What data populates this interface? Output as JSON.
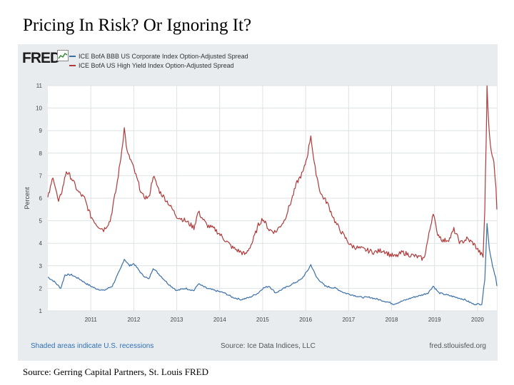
{
  "slide": {
    "title": "Pricing In Risk?  Or Ignoring It?",
    "source": "Source: Gerring Capital Partners, St. Louis FRED"
  },
  "fred": {
    "logo": "FRED",
    "footer_note": "Shaded areas indicate U.S. recessions",
    "footer_source": "Source: Ice Data Indices, LLC",
    "footer_url": "fred.stlouisfed.org"
  },
  "colors": {
    "hy": "#b03a3a",
    "bbb": "#3a6fa8",
    "panel": "#e8ecef",
    "plot_bg": "#ffffff",
    "grid": "#dde2e6"
  },
  "chart_data": {
    "type": "line",
    "ylabel": "Percent",
    "xlabel": "",
    "ylim": [
      1,
      11
    ],
    "xlim": [
      2010.0,
      2020.45
    ],
    "yticks": [
      "1",
      "2",
      "3",
      "4",
      "5",
      "6",
      "7",
      "8",
      "9",
      "10",
      "11"
    ],
    "xticks": [
      "2011",
      "2012",
      "2013",
      "2014",
      "2015",
      "2016",
      "2017",
      "2018",
      "2019",
      "2020"
    ],
    "grid": true,
    "legend_position": "top-left",
    "series": [
      {
        "name": "ICE BofA BBB US Corporate Index Option-Adjusted Spread",
        "color_key": "bbb",
        "points": [
          [
            2010.0,
            2.5
          ],
          [
            2010.15,
            2.3
          ],
          [
            2010.3,
            2.0
          ],
          [
            2010.4,
            2.6
          ],
          [
            2010.55,
            2.6
          ],
          [
            2010.75,
            2.4
          ],
          [
            2010.9,
            2.2
          ],
          [
            2011.1,
            2.0
          ],
          [
            2011.3,
            1.9
          ],
          [
            2011.5,
            2.1
          ],
          [
            2011.7,
            2.9
          ],
          [
            2011.78,
            3.3
          ],
          [
            2011.9,
            3.0
          ],
          [
            2012.0,
            3.1
          ],
          [
            2012.2,
            2.6
          ],
          [
            2012.35,
            2.4
          ],
          [
            2012.45,
            2.9
          ],
          [
            2012.6,
            2.6
          ],
          [
            2012.8,
            2.2
          ],
          [
            2013.0,
            1.9
          ],
          [
            2013.2,
            2.0
          ],
          [
            2013.4,
            1.9
          ],
          [
            2013.5,
            2.2
          ],
          [
            2013.7,
            2.0
          ],
          [
            2013.9,
            1.9
          ],
          [
            2014.1,
            1.8
          ],
          [
            2014.3,
            1.6
          ],
          [
            2014.5,
            1.5
          ],
          [
            2014.7,
            1.6
          ],
          [
            2014.9,
            1.8
          ],
          [
            2015.0,
            2.0
          ],
          [
            2015.15,
            2.1
          ],
          [
            2015.3,
            1.8
          ],
          [
            2015.5,
            2.0
          ],
          [
            2015.7,
            2.2
          ],
          [
            2015.9,
            2.4
          ],
          [
            2016.05,
            2.8
          ],
          [
            2016.12,
            3.05
          ],
          [
            2016.25,
            2.5
          ],
          [
            2016.45,
            2.1
          ],
          [
            2016.7,
            2.0
          ],
          [
            2016.9,
            1.8
          ],
          [
            2017.1,
            1.7
          ],
          [
            2017.3,
            1.6
          ],
          [
            2017.5,
            1.6
          ],
          [
            2017.7,
            1.5
          ],
          [
            2017.9,
            1.4
          ],
          [
            2018.05,
            1.3
          ],
          [
            2018.2,
            1.4
          ],
          [
            2018.35,
            1.5
          ],
          [
            2018.5,
            1.6
          ],
          [
            2018.7,
            1.7
          ],
          [
            2018.85,
            1.8
          ],
          [
            2018.97,
            2.1
          ],
          [
            2019.1,
            1.8
          ],
          [
            2019.3,
            1.7
          ],
          [
            2019.5,
            1.6
          ],
          [
            2019.7,
            1.5
          ],
          [
            2019.9,
            1.3
          ],
          [
            2020.1,
            1.3
          ],
          [
            2020.17,
            2.4
          ],
          [
            2020.22,
            4.9
          ],
          [
            2020.27,
            3.8
          ],
          [
            2020.35,
            3.0
          ],
          [
            2020.42,
            2.5
          ],
          [
            2020.45,
            2.1
          ]
        ]
      },
      {
        "name": "ICE BofA US High Yield Index Option-Adjusted Spread",
        "color_key": "hy",
        "points": [
          [
            2010.0,
            6.0
          ],
          [
            2010.08,
            6.6
          ],
          [
            2010.12,
            7.0
          ],
          [
            2010.25,
            5.8
          ],
          [
            2010.35,
            6.5
          ],
          [
            2010.43,
            7.2
          ],
          [
            2010.55,
            6.9
          ],
          [
            2010.7,
            6.3
          ],
          [
            2010.85,
            6.0
          ],
          [
            2011.0,
            5.2
          ],
          [
            2011.15,
            4.8
          ],
          [
            2011.3,
            4.6
          ],
          [
            2011.45,
            5.0
          ],
          [
            2011.6,
            6.5
          ],
          [
            2011.7,
            7.8
          ],
          [
            2011.78,
            9.1
          ],
          [
            2011.85,
            8.0
          ],
          [
            2011.95,
            7.6
          ],
          [
            2012.05,
            7.0
          ],
          [
            2012.2,
            6.1
          ],
          [
            2012.35,
            6.0
          ],
          [
            2012.45,
            7.0
          ],
          [
            2012.6,
            6.3
          ],
          [
            2012.8,
            5.8
          ],
          [
            2013.0,
            5.2
          ],
          [
            2013.2,
            5.0
          ],
          [
            2013.4,
            4.7
          ],
          [
            2013.5,
            5.4
          ],
          [
            2013.7,
            4.8
          ],
          [
            2013.9,
            4.6
          ],
          [
            2014.1,
            4.2
          ],
          [
            2014.3,
            3.8
          ],
          [
            2014.5,
            3.6
          ],
          [
            2014.6,
            3.5
          ],
          [
            2014.75,
            4.0
          ],
          [
            2014.9,
            4.8
          ],
          [
            2015.0,
            5.1
          ],
          [
            2015.15,
            4.6
          ],
          [
            2015.3,
            4.5
          ],
          [
            2015.5,
            5.0
          ],
          [
            2015.65,
            5.8
          ],
          [
            2015.8,
            6.7
          ],
          [
            2015.95,
            7.2
          ],
          [
            2016.05,
            8.0
          ],
          [
            2016.12,
            8.8
          ],
          [
            2016.2,
            7.5
          ],
          [
            2016.35,
            6.2
          ],
          [
            2016.5,
            5.8
          ],
          [
            2016.7,
            4.9
          ],
          [
            2016.9,
            4.3
          ],
          [
            2017.05,
            3.9
          ],
          [
            2017.2,
            3.8
          ],
          [
            2017.4,
            3.7
          ],
          [
            2017.6,
            3.6
          ],
          [
            2017.8,
            3.7
          ],
          [
            2017.95,
            3.5
          ],
          [
            2018.1,
            3.4
          ],
          [
            2018.25,
            3.6
          ],
          [
            2018.4,
            3.5
          ],
          [
            2018.6,
            3.4
          ],
          [
            2018.75,
            3.3
          ],
          [
            2018.85,
            4.2
          ],
          [
            2018.97,
            5.4
          ],
          [
            2019.05,
            4.5
          ],
          [
            2019.2,
            4.1
          ],
          [
            2019.35,
            4.2
          ],
          [
            2019.45,
            4.6
          ],
          [
            2019.6,
            4.0
          ],
          [
            2019.75,
            4.2
          ],
          [
            2019.9,
            4.0
          ],
          [
            2020.05,
            3.6
          ],
          [
            2020.13,
            3.4
          ],
          [
            2020.17,
            5.5
          ],
          [
            2020.2,
            8.5
          ],
          [
            2020.22,
            10.9
          ],
          [
            2020.26,
            9.3
          ],
          [
            2020.32,
            8.0
          ],
          [
            2020.38,
            7.6
          ],
          [
            2020.43,
            6.5
          ],
          [
            2020.45,
            5.5
          ]
        ]
      }
    ]
  }
}
